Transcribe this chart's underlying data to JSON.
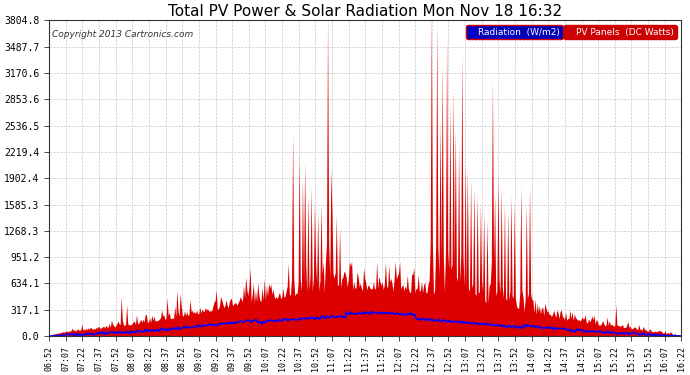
{
  "title": "Total PV Power & Solar Radiation Mon Nov 18 16:32",
  "copyright": "Copyright 2013 Cartronics.com",
  "legend_radiation": "Radiation  (W/m2)",
  "legend_pv": "PV Panels  (DC Watts)",
  "yticks": [
    0.0,
    317.1,
    634.1,
    951.2,
    1268.3,
    1585.3,
    1902.4,
    2219.4,
    2536.5,
    2853.6,
    3170.6,
    3487.7,
    3804.8
  ],
  "ymax": 3804.8,
  "background_color": "#ffffff",
  "plot_bg_color": "#ffffff",
  "grid_color": "#bbbbbb",
  "radiation_color": "#0000ff",
  "pv_color": "#dd0000",
  "title_fontsize": 11,
  "xlabel_fontsize": 6,
  "ylabel_fontsize": 7,
  "n_points": 580,
  "tick_labels": [
    "06:52",
    "07:07",
    "07:22",
    "07:37",
    "07:52",
    "08:07",
    "08:22",
    "08:37",
    "08:52",
    "09:07",
    "09:22",
    "09:37",
    "09:52",
    "10:07",
    "10:22",
    "10:37",
    "10:52",
    "11:07",
    "11:22",
    "11:37",
    "11:52",
    "12:07",
    "12:22",
    "12:37",
    "12:52",
    "13:07",
    "13:22",
    "13:37",
    "13:52",
    "14:07",
    "14:22",
    "14:37",
    "14:52",
    "15:07",
    "15:22",
    "15:37",
    "15:52",
    "16:07",
    "16:22"
  ]
}
